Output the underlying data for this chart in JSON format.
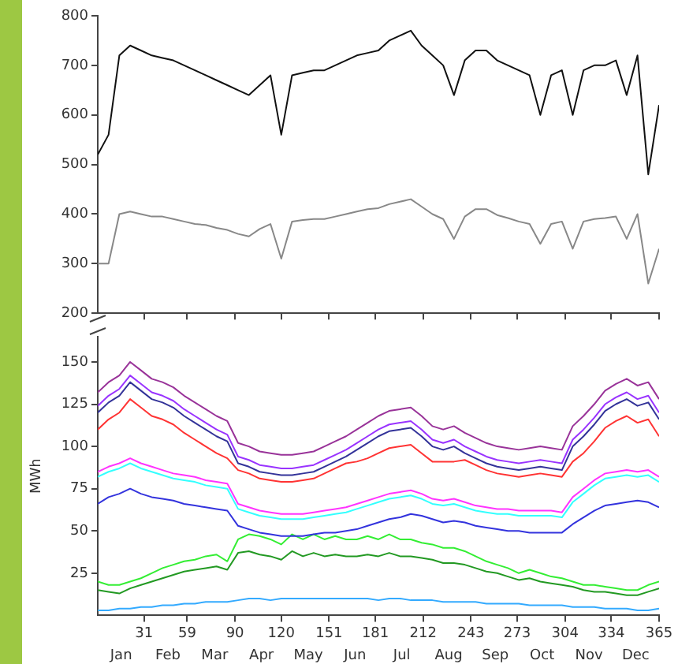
{
  "chart_data": [
    {
      "type": "line",
      "tick_labels": "y",
      "marker": "none",
      "xlim": [
        1,
        365
      ],
      "xticks": [
        31,
        59,
        90,
        120,
        151,
        181,
        212,
        243,
        273,
        304,
        334,
        365
      ],
      "ylim": [
        200,
        800
      ],
      "yticks": [
        200,
        300,
        400,
        500,
        600,
        700,
        800
      ],
      "x": [
        1,
        8,
        15,
        22,
        29,
        36,
        43,
        50,
        57,
        64,
        71,
        78,
        85,
        92,
        99,
        106,
        113,
        120,
        127,
        134,
        141,
        148,
        155,
        162,
        169,
        176,
        183,
        190,
        197,
        204,
        211,
        218,
        225,
        232,
        239,
        246,
        253,
        260,
        267,
        274,
        281,
        288,
        295,
        302,
        309,
        316,
        323,
        330,
        337,
        344,
        351,
        358,
        365
      ],
      "series": [
        {
          "color": "#111111",
          "values": [
            520,
            560,
            720,
            740,
            730,
            720,
            715,
            710,
            700,
            690,
            680,
            670,
            660,
            650,
            640,
            660,
            680,
            560,
            680,
            685,
            690,
            690,
            700,
            710,
            720,
            725,
            730,
            750,
            760,
            770,
            740,
            720,
            700,
            640,
            710,
            730,
            730,
            710,
            700,
            690,
            680,
            600,
            680,
            690,
            600,
            690,
            700,
            700,
            710,
            640,
            720,
            480,
            620
          ]
        },
        {
          "color": "#888888",
          "values": [
            300,
            300,
            400,
            405,
            400,
            395,
            395,
            390,
            385,
            380,
            378,
            372,
            368,
            360,
            355,
            370,
            380,
            310,
            385,
            388,
            390,
            390,
            395,
            400,
            405,
            410,
            412,
            420,
            425,
            430,
            415,
            400,
            390,
            350,
            395,
            410,
            410,
            398,
            392,
            385,
            380,
            340,
            380,
            385,
            330,
            385,
            390,
            392,
            395,
            350,
            400,
            260,
            330
          ]
        }
      ]
    },
    {
      "type": "line",
      "ylabel": "MWh",
      "marker": "none",
      "xlim": [
        1,
        365
      ],
      "xticks": [
        31,
        59,
        90,
        120,
        151,
        181,
        212,
        243,
        273,
        304,
        334,
        365
      ],
      "annotations": [
        "Jan",
        "Feb",
        "Mar",
        "Apr",
        "May",
        "Jun",
        "Jul",
        "Aug",
        "Sep",
        "Oct",
        "Nov",
        "Dec"
      ],
      "ylim": [
        0,
        165
      ],
      "yticks": [
        25,
        50,
        75,
        100,
        125,
        150
      ],
      "x": [
        1,
        8,
        15,
        22,
        29,
        36,
        43,
        50,
        57,
        64,
        71,
        78,
        85,
        92,
        99,
        106,
        113,
        120,
        127,
        134,
        141,
        148,
        155,
        162,
        169,
        176,
        183,
        190,
        197,
        204,
        211,
        218,
        225,
        232,
        239,
        246,
        253,
        260,
        267,
        274,
        281,
        288,
        295,
        302,
        309,
        316,
        323,
        330,
        337,
        344,
        351,
        358,
        365
      ],
      "series": [
        {
          "color": "#993399",
          "values": [
            132,
            138,
            142,
            150,
            145,
            140,
            138,
            135,
            130,
            126,
            122,
            118,
            115,
            102,
            100,
            97,
            96,
            95,
            95,
            96,
            97,
            100,
            103,
            106,
            110,
            114,
            118,
            121,
            122,
            123,
            118,
            112,
            110,
            112,
            108,
            105,
            102,
            100,
            99,
            98,
            99,
            100,
            99,
            98,
            112,
            118,
            125,
            133,
            137,
            140,
            136,
            138,
            128
          ]
        },
        {
          "color": "#9933ff",
          "values": [
            124,
            130,
            134,
            142,
            137,
            132,
            130,
            127,
            122,
            118,
            114,
            110,
            107,
            94,
            92,
            89,
            88,
            87,
            87,
            88,
            89,
            92,
            95,
            98,
            102,
            106,
            110,
            113,
            114,
            115,
            110,
            104,
            102,
            104,
            100,
            97,
            94,
            92,
            91,
            90,
            91,
            92,
            91,
            90,
            104,
            110,
            117,
            125,
            129,
            132,
            128,
            130,
            120
          ]
        },
        {
          "color": "#333399",
          "values": [
            120,
            126,
            130,
            138,
            133,
            128,
            126,
            123,
            118,
            114,
            110,
            106,
            103,
            90,
            88,
            85,
            84,
            83,
            83,
            84,
            85,
            88,
            91,
            94,
            98,
            102,
            106,
            109,
            110,
            111,
            106,
            100,
            98,
            100,
            96,
            93,
            90,
            88,
            87,
            86,
            87,
            88,
            87,
            86,
            100,
            106,
            113,
            121,
            125,
            128,
            124,
            126,
            116
          ]
        },
        {
          "color": "#ff3333",
          "values": [
            110,
            116,
            120,
            128,
            123,
            118,
            116,
            113,
            108,
            104,
            100,
            96,
            93,
            86,
            84,
            81,
            80,
            79,
            79,
            80,
            81,
            84,
            87,
            90,
            91,
            93,
            96,
            99,
            100,
            101,
            96,
            91,
            91,
            91,
            92,
            89,
            86,
            84,
            83,
            82,
            83,
            84,
            83,
            82,
            91,
            96,
            103,
            111,
            115,
            118,
            114,
            116,
            106
          ]
        },
        {
          "color": "#ff33ff",
          "values": [
            85,
            88,
            90,
            93,
            90,
            88,
            86,
            84,
            83,
            82,
            80,
            79,
            78,
            66,
            64,
            62,
            61,
            60,
            60,
            60,
            61,
            62,
            63,
            64,
            66,
            68,
            70,
            72,
            73,
            74,
            72,
            69,
            68,
            69,
            67,
            65,
            64,
            63,
            63,
            62,
            62,
            62,
            62,
            61,
            70,
            75,
            80,
            84,
            85,
            86,
            85,
            86,
            82
          ]
        },
        {
          "color": "#33ffff",
          "values": [
            82,
            85,
            87,
            90,
            87,
            85,
            83,
            81,
            80,
            79,
            77,
            76,
            75,
            63,
            61,
            59,
            58,
            57,
            57,
            57,
            58,
            59,
            60,
            61,
            63,
            65,
            67,
            69,
            70,
            71,
            69,
            66,
            65,
            66,
            64,
            62,
            61,
            60,
            60,
            59,
            59,
            59,
            59,
            58,
            67,
            72,
            77,
            81,
            82,
            83,
            82,
            83,
            79
          ]
        },
        {
          "color": "#3333dd",
          "values": [
            66,
            70,
            72,
            75,
            72,
            70,
            69,
            68,
            66,
            65,
            64,
            63,
            62,
            53,
            51,
            49,
            48,
            47,
            47,
            47,
            48,
            49,
            49,
            50,
            51,
            53,
            55,
            57,
            58,
            60,
            59,
            57,
            55,
            56,
            55,
            53,
            52,
            51,
            50,
            50,
            49,
            49,
            49,
            49,
            54,
            58,
            62,
            65,
            66,
            67,
            68,
            67,
            64
          ]
        },
        {
          "color": "#33ee33",
          "values": [
            20,
            18,
            18,
            20,
            22,
            25,
            28,
            30,
            32,
            33,
            35,
            36,
            32,
            45,
            48,
            47,
            45,
            42,
            48,
            45,
            48,
            45,
            47,
            45,
            45,
            47,
            45,
            48,
            45,
            45,
            43,
            42,
            40,
            40,
            38,
            35,
            32,
            30,
            28,
            25,
            27,
            25,
            23,
            22,
            20,
            18,
            18,
            17,
            16,
            15,
            15,
            18,
            20
          ]
        },
        {
          "color": "#229922",
          "values": [
            15,
            14,
            13,
            16,
            18,
            20,
            22,
            24,
            26,
            27,
            28,
            29,
            27,
            37,
            38,
            36,
            35,
            33,
            38,
            35,
            37,
            35,
            36,
            35,
            35,
            36,
            35,
            37,
            35,
            35,
            34,
            33,
            31,
            31,
            30,
            28,
            26,
            25,
            23,
            21,
            22,
            20,
            19,
            18,
            17,
            15,
            14,
            14,
            13,
            12,
            12,
            14,
            16
          ]
        },
        {
          "color": "#33aaff",
          "values": [
            3,
            3,
            4,
            4,
            5,
            5,
            6,
            6,
            7,
            7,
            8,
            8,
            8,
            9,
            10,
            10,
            9,
            10,
            10,
            10,
            10,
            10,
            10,
            10,
            10,
            10,
            9,
            10,
            10,
            9,
            9,
            9,
            8,
            8,
            8,
            8,
            7,
            7,
            7,
            7,
            6,
            6,
            6,
            6,
            5,
            5,
            5,
            4,
            4,
            4,
            3,
            3,
            4
          ]
        }
      ]
    }
  ]
}
